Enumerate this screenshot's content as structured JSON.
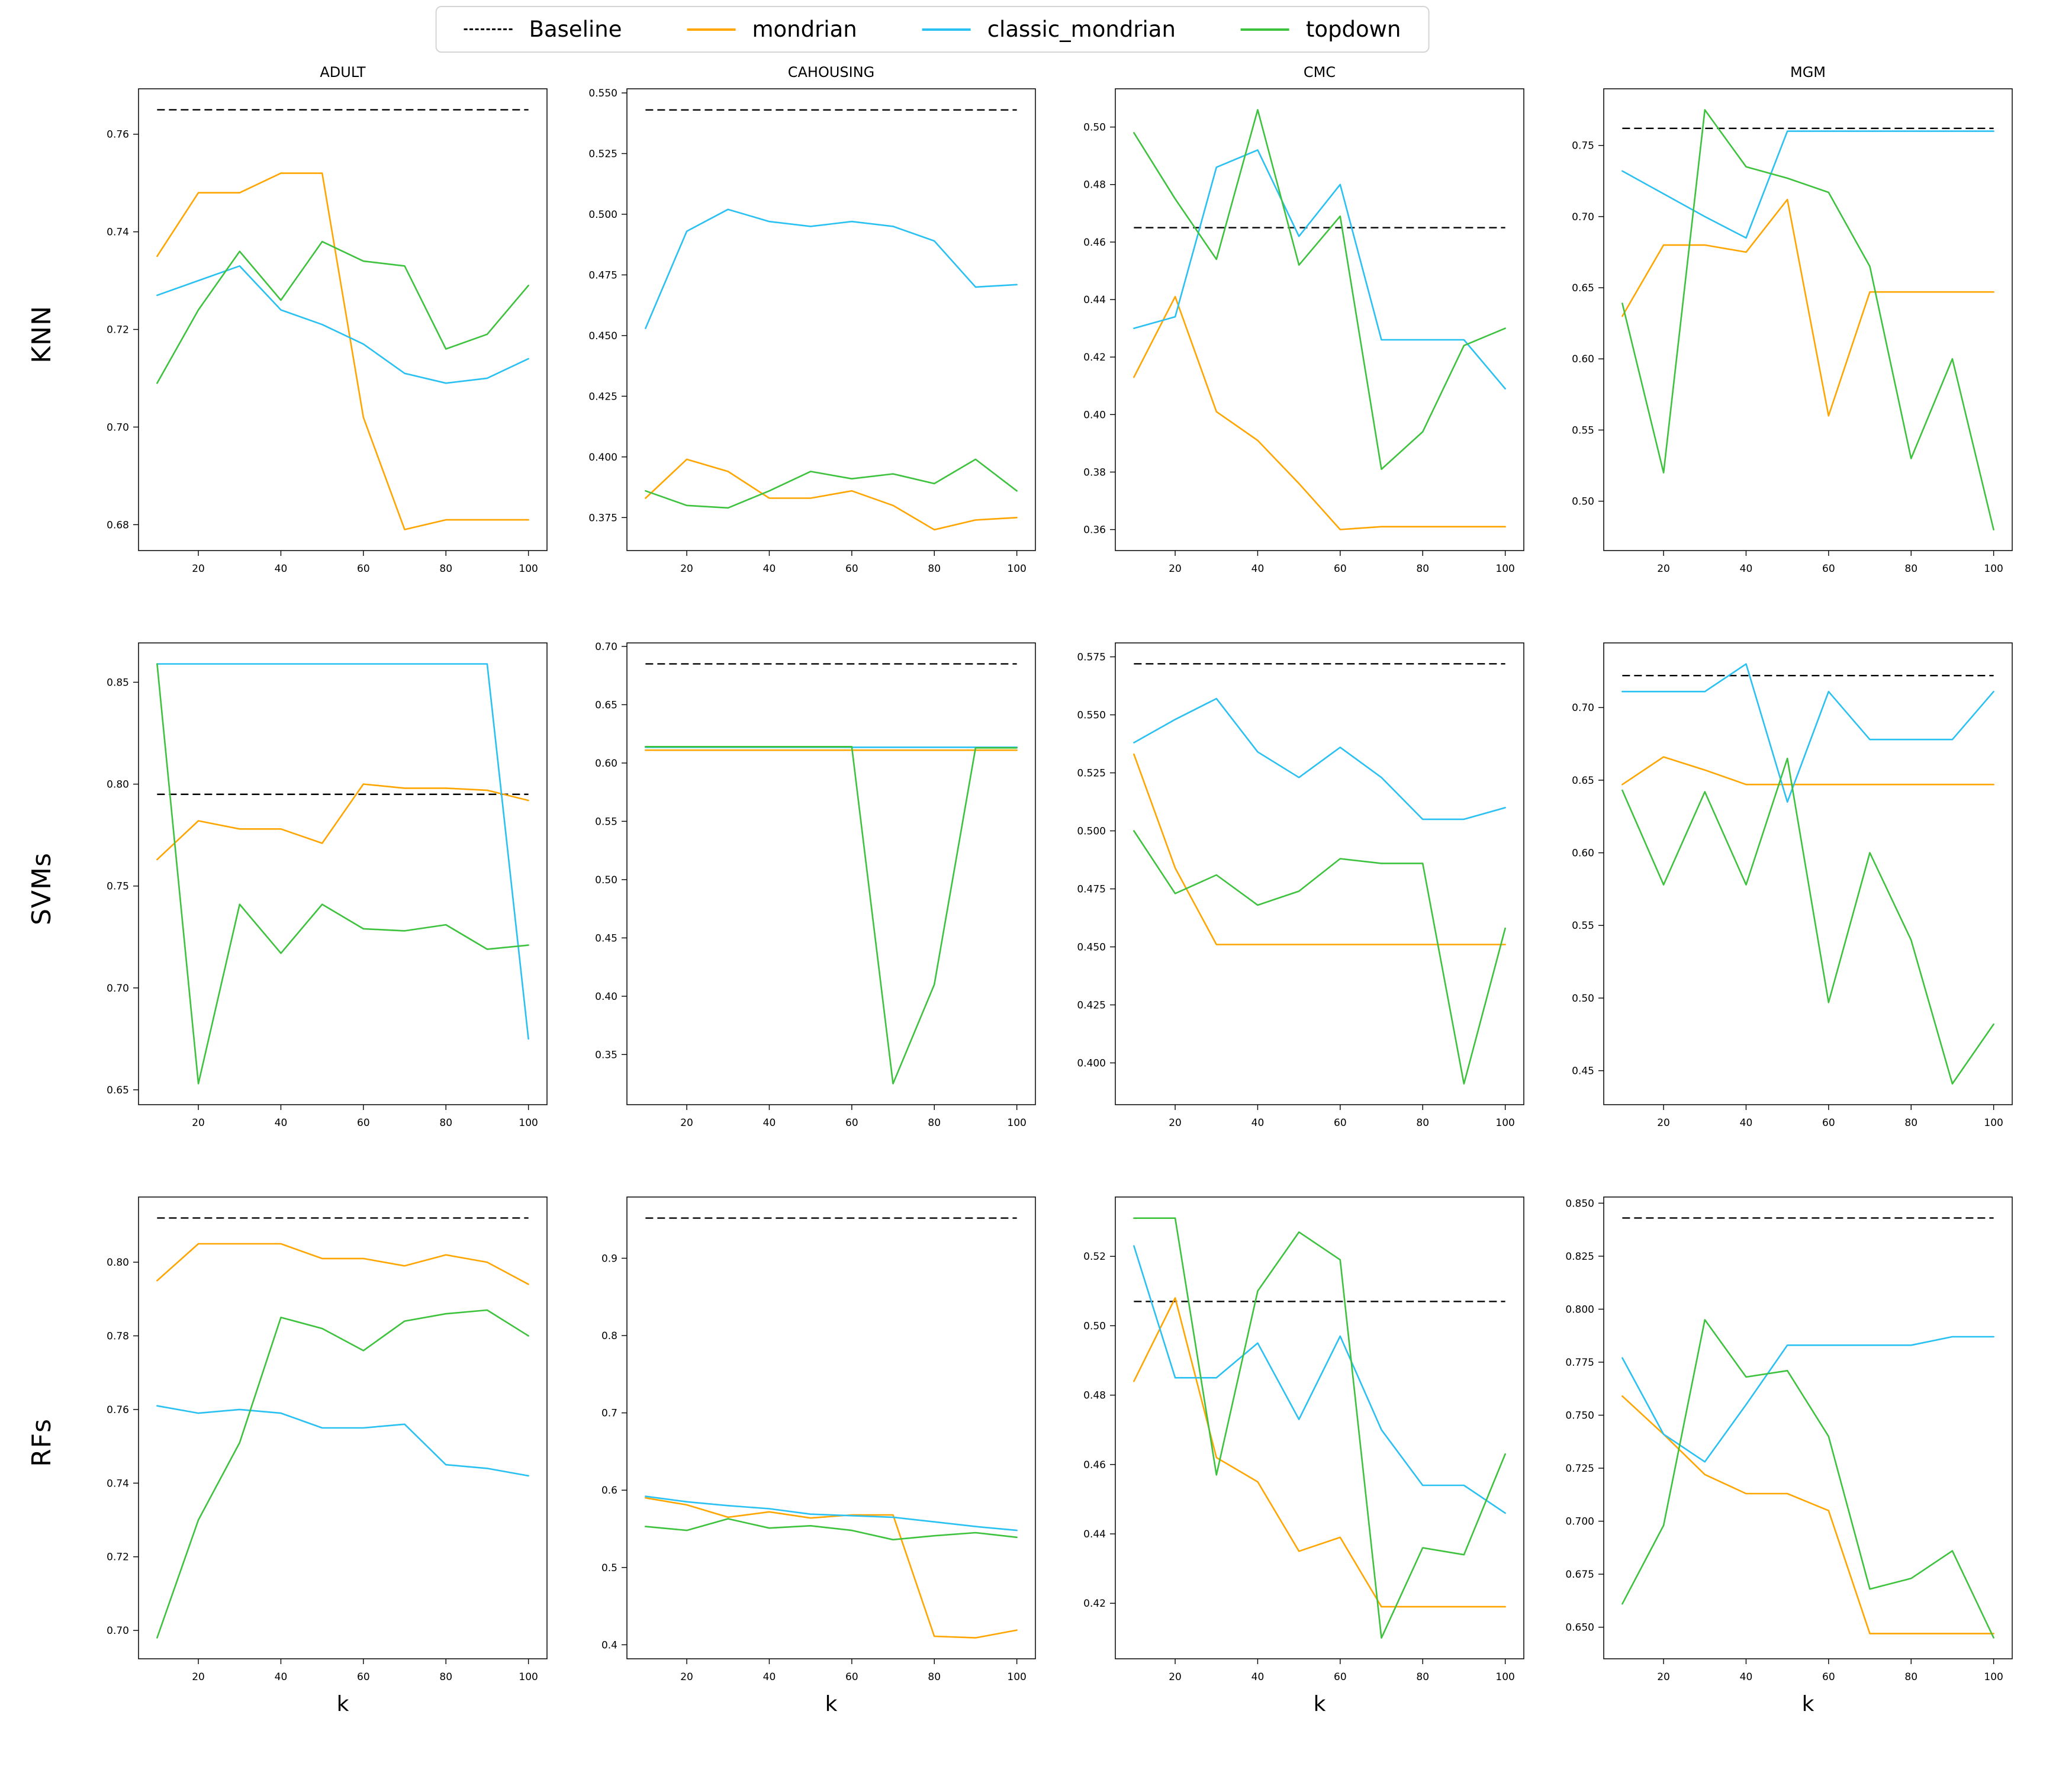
{
  "legend": {
    "items": [
      {
        "label": "Baseline",
        "color": "#000000",
        "style": "dashed"
      },
      {
        "label": "mondrian",
        "color": "#FFA500",
        "style": "solid"
      },
      {
        "label": "classic_mondrian",
        "color": "#29C0F2",
        "style": "solid"
      },
      {
        "label": "topdown",
        "color": "#3DC23D",
        "style": "solid"
      }
    ]
  },
  "rows": [
    {
      "label": "KNN"
    },
    {
      "label": "SVMs"
    },
    {
      "label": "RFs"
    }
  ],
  "colors": {
    "baseline": "#000000",
    "mondrian": "#FFA500",
    "classic_mondrian": "#29C0F2",
    "topdown": "#3DC23D"
  },
  "xlabel": "k",
  "chart_data": [
    {
      "type": "line",
      "row": "KNN",
      "dataset": "ADULT",
      "title": "ADULT",
      "xlabel": "",
      "x": [
        10,
        20,
        30,
        40,
        50,
        60,
        70,
        80,
        90,
        100
      ],
      "xticks": [
        20,
        40,
        60,
        80,
        100
      ],
      "xlim": [
        5.5,
        104.5
      ],
      "ylim": [
        0.6747,
        0.7693
      ],
      "ytick_values": [
        0.68,
        0.7,
        0.72,
        0.74,
        0.76
      ],
      "ytick_labels": [
        "0.68",
        "0.70",
        "0.72",
        "0.74",
        "0.76"
      ],
      "baseline": 0.765,
      "series": [
        {
          "name": "mondrian",
          "values": [
            0.735,
            0.748,
            0.748,
            0.752,
            0.752,
            0.702,
            0.679,
            0.681,
            0.681,
            0.681
          ]
        },
        {
          "name": "classic_mondrian",
          "values": [
            0.727,
            0.73,
            0.733,
            0.724,
            0.721,
            0.717,
            0.711,
            0.709,
            0.71,
            0.714
          ]
        },
        {
          "name": "topdown",
          "values": [
            0.709,
            0.724,
            0.736,
            0.726,
            0.738,
            0.734,
            0.733,
            0.716,
            0.719,
            0.729
          ]
        }
      ]
    },
    {
      "type": "line",
      "row": "KNN",
      "dataset": "CAHOUSING",
      "title": "CAHOUSING",
      "xlabel": "",
      "x": [
        10,
        20,
        30,
        40,
        50,
        60,
        70,
        80,
        90,
        100
      ],
      "xticks": [
        20,
        40,
        60,
        80,
        100
      ],
      "xlim": [
        5.5,
        104.5
      ],
      "ylim": [
        0.3614,
        0.5517
      ],
      "ytick_values": [
        0.375,
        0.4,
        0.425,
        0.45,
        0.475,
        0.5,
        0.525,
        0.55
      ],
      "ytick_labels": [
        "0.375",
        "0.400",
        "0.425",
        "0.450",
        "0.475",
        "0.500",
        "0.525",
        "0.550"
      ],
      "baseline": 0.543,
      "series": [
        {
          "name": "mondrian",
          "values": [
            0.383,
            0.399,
            0.394,
            0.383,
            0.383,
            0.386,
            0.38,
            0.37,
            0.374,
            0.375
          ]
        },
        {
          "name": "classic_mondrian",
          "values": [
            0.453,
            0.493,
            0.502,
            0.497,
            0.495,
            0.497,
            0.495,
            0.489,
            0.47,
            0.471
          ]
        },
        {
          "name": "topdown",
          "values": [
            0.386,
            0.38,
            0.379,
            0.386,
            0.394,
            0.391,
            0.393,
            0.389,
            0.399,
            0.386
          ]
        }
      ]
    },
    {
      "type": "line",
      "row": "KNN",
      "dataset": "CMC",
      "title": "CMC",
      "xlabel": "",
      "x": [
        10,
        20,
        30,
        40,
        50,
        60,
        70,
        80,
        90,
        100
      ],
      "xticks": [
        20,
        40,
        60,
        80,
        100
      ],
      "xlim": [
        5.5,
        104.5
      ],
      "ylim": [
        0.3527,
        0.5133
      ],
      "ytick_values": [
        0.36,
        0.38,
        0.4,
        0.42,
        0.44,
        0.46,
        0.48,
        0.5
      ],
      "ytick_labels": [
        "0.36",
        "0.38",
        "0.40",
        "0.42",
        "0.44",
        "0.46",
        "0.48",
        "0.50"
      ],
      "baseline": 0.465,
      "series": [
        {
          "name": "mondrian",
          "values": [
            0.413,
            0.441,
            0.401,
            0.391,
            0.376,
            0.36,
            0.361,
            0.361,
            0.361,
            0.361
          ]
        },
        {
          "name": "classic_mondrian",
          "values": [
            0.43,
            0.434,
            0.486,
            0.492,
            0.462,
            0.48,
            0.426,
            0.426,
            0.426,
            0.409
          ]
        },
        {
          "name": "topdown",
          "values": [
            0.498,
            0.475,
            0.454,
            0.506,
            0.452,
            0.469,
            0.381,
            0.394,
            0.424,
            0.43
          ]
        }
      ]
    },
    {
      "type": "line",
      "row": "KNN",
      "dataset": "MGM",
      "title": "MGM",
      "xlabel": "",
      "x": [
        10,
        20,
        30,
        40,
        50,
        60,
        70,
        80,
        90,
        100
      ],
      "xticks": [
        20,
        40,
        60,
        80,
        100
      ],
      "xlim": [
        5.5,
        104.5
      ],
      "ylim": [
        0.4653,
        0.7898
      ],
      "ytick_values": [
        0.5,
        0.55,
        0.6,
        0.65,
        0.7,
        0.75
      ],
      "ytick_labels": [
        "0.50",
        "0.55",
        "0.60",
        "0.65",
        "0.70",
        "0.75"
      ],
      "baseline": 0.762,
      "series": [
        {
          "name": "mondrian",
          "values": [
            0.63,
            0.68,
            0.68,
            0.675,
            0.712,
            0.56,
            0.647,
            0.647,
            0.647,
            0.647
          ]
        },
        {
          "name": "classic_mondrian",
          "values": [
            0.732,
            0.716,
            0.7,
            0.685,
            0.76,
            0.76,
            0.76,
            0.76,
            0.76,
            0.76
          ]
        },
        {
          "name": "topdown",
          "values": [
            0.639,
            0.52,
            0.775,
            0.735,
            0.727,
            0.717,
            0.665,
            0.53,
            0.6,
            0.48
          ]
        }
      ]
    },
    {
      "type": "line",
      "row": "SVMs",
      "dataset": "ADULT",
      "title": "",
      "xlabel": "",
      "x": [
        10,
        20,
        30,
        40,
        50,
        60,
        70,
        80,
        90,
        100
      ],
      "xticks": [
        20,
        40,
        60,
        80,
        100
      ],
      "xlim": [
        5.5,
        104.5
      ],
      "ylim": [
        0.6427,
        0.8693
      ],
      "ytick_values": [
        0.65,
        0.7,
        0.75,
        0.8,
        0.85
      ],
      "ytick_labels": [
        "0.65",
        "0.70",
        "0.75",
        "0.80",
        "0.85"
      ],
      "baseline": 0.795,
      "series": [
        {
          "name": "mondrian",
          "values": [
            0.763,
            0.782,
            0.778,
            0.778,
            0.771,
            0.8,
            0.798,
            0.798,
            0.797,
            0.792
          ]
        },
        {
          "name": "classic_mondrian",
          "values": [
            0.859,
            0.859,
            0.859,
            0.859,
            0.859,
            0.859,
            0.859,
            0.859,
            0.859,
            0.675
          ]
        },
        {
          "name": "topdown",
          "values": [
            0.859,
            0.653,
            0.741,
            0.717,
            0.741,
            0.729,
            0.728,
            0.731,
            0.719,
            0.721
          ]
        }
      ]
    },
    {
      "type": "line",
      "row": "SVMs",
      "dataset": "CAHOUSING",
      "title": "",
      "xlabel": "",
      "x": [
        10,
        20,
        30,
        40,
        50,
        60,
        70,
        80,
        90,
        100
      ],
      "xticks": [
        20,
        40,
        60,
        80,
        100
      ],
      "xlim": [
        5.5,
        104.5
      ],
      "ylim": [
        0.307,
        0.703
      ],
      "ytick_values": [
        0.35,
        0.4,
        0.45,
        0.5,
        0.55,
        0.6,
        0.65,
        0.7
      ],
      "ytick_labels": [
        "0.35",
        "0.40",
        "0.45",
        "0.50",
        "0.55",
        "0.60",
        "0.65",
        "0.70"
      ],
      "baseline": 0.685,
      "series": [
        {
          "name": "mondrian",
          "values": [
            0.611,
            0.611,
            0.611,
            0.611,
            0.611,
            0.611,
            0.611,
            0.611,
            0.611,
            0.611
          ]
        },
        {
          "name": "classic_mondrian",
          "values": [
            0.6135,
            0.6135,
            0.6135,
            0.6135,
            0.6135,
            0.6135,
            0.6135,
            0.6135,
            0.6135,
            0.6135
          ]
        },
        {
          "name": "topdown",
          "values": [
            0.614,
            0.614,
            0.614,
            0.614,
            0.614,
            0.614,
            0.325,
            0.41,
            0.613,
            0.613
          ]
        }
      ]
    },
    {
      "type": "line",
      "row": "SVMs",
      "dataset": "CMC",
      "title": "",
      "xlabel": "",
      "x": [
        10,
        20,
        30,
        40,
        50,
        60,
        70,
        80,
        90,
        100
      ],
      "xticks": [
        20,
        40,
        60,
        80,
        100
      ],
      "xlim": [
        5.5,
        104.5
      ],
      "ylim": [
        0.382,
        0.581
      ],
      "ytick_values": [
        0.4,
        0.425,
        0.45,
        0.475,
        0.5,
        0.525,
        0.55,
        0.575
      ],
      "ytick_labels": [
        "0.400",
        "0.425",
        "0.450",
        "0.475",
        "0.500",
        "0.525",
        "0.550",
        "0.575"
      ],
      "baseline": 0.572,
      "series": [
        {
          "name": "mondrian",
          "values": [
            0.533,
            0.484,
            0.451,
            0.451,
            0.451,
            0.451,
            0.451,
            0.451,
            0.451,
            0.451
          ]
        },
        {
          "name": "classic_mondrian",
          "values": [
            0.538,
            0.548,
            0.557,
            0.534,
            0.523,
            0.536,
            0.523,
            0.505,
            0.505,
            0.51
          ]
        },
        {
          "name": "topdown",
          "values": [
            0.5,
            0.473,
            0.481,
            0.468,
            0.474,
            0.488,
            0.486,
            0.486,
            0.391,
            0.458
          ]
        }
      ]
    },
    {
      "type": "line",
      "row": "SVMs",
      "dataset": "MGM",
      "title": "",
      "xlabel": "",
      "x": [
        10,
        20,
        30,
        40,
        50,
        60,
        70,
        80,
        90,
        100
      ],
      "xticks": [
        20,
        40,
        60,
        80,
        100
      ],
      "xlim": [
        5.5,
        104.5
      ],
      "ylim": [
        0.4266,
        0.7445
      ],
      "ytick_values": [
        0.45,
        0.5,
        0.55,
        0.6,
        0.65,
        0.7
      ],
      "ytick_labels": [
        "0.45",
        "0.50",
        "0.55",
        "0.60",
        "0.65",
        "0.70"
      ],
      "baseline": 0.722,
      "series": [
        {
          "name": "mondrian",
          "values": [
            0.647,
            0.666,
            0.657,
            0.647,
            0.647,
            0.647,
            0.647,
            0.647,
            0.647,
            0.647
          ]
        },
        {
          "name": "classic_mondrian",
          "values": [
            0.711,
            0.711,
            0.711,
            0.73,
            0.635,
            0.711,
            0.678,
            0.678,
            0.678,
            0.711
          ]
        },
        {
          "name": "topdown",
          "values": [
            0.643,
            0.578,
            0.642,
            0.578,
            0.665,
            0.497,
            0.6,
            0.54,
            0.441,
            0.482
          ]
        }
      ]
    },
    {
      "type": "line",
      "row": "RFs",
      "dataset": "ADULT",
      "title": "",
      "xlabel": "k",
      "x": [
        10,
        20,
        30,
        40,
        50,
        60,
        70,
        80,
        90,
        100
      ],
      "xticks": [
        20,
        40,
        60,
        80,
        100
      ],
      "xlim": [
        5.5,
        104.5
      ],
      "ylim": [
        0.6923,
        0.8177
      ],
      "ytick_values": [
        0.7,
        0.72,
        0.74,
        0.76,
        0.78,
        0.8
      ],
      "ytick_labels": [
        "0.70",
        "0.72",
        "0.74",
        "0.76",
        "0.78",
        "0.80"
      ],
      "baseline": 0.812,
      "series": [
        {
          "name": "mondrian",
          "values": [
            0.795,
            0.805,
            0.805,
            0.805,
            0.801,
            0.801,
            0.799,
            0.802,
            0.8,
            0.794
          ]
        },
        {
          "name": "classic_mondrian",
          "values": [
            0.761,
            0.759,
            0.76,
            0.759,
            0.755,
            0.755,
            0.756,
            0.745,
            0.744,
            0.742
          ]
        },
        {
          "name": "topdown",
          "values": [
            0.698,
            0.73,
            0.751,
            0.785,
            0.782,
            0.776,
            0.784,
            0.786,
            0.787,
            0.78
          ]
        }
      ]
    },
    {
      "type": "line",
      "row": "RFs",
      "dataset": "CAHOUSING",
      "title": "",
      "xlabel": "k",
      "x": [
        10,
        20,
        30,
        40,
        50,
        60,
        70,
        80,
        90,
        100
      ],
      "xticks": [
        20,
        40,
        60,
        80,
        100
      ],
      "xlim": [
        5.5,
        104.5
      ],
      "ylim": [
        0.3819,
        0.9792
      ],
      "ytick_values": [
        0.4,
        0.5,
        0.6,
        0.7,
        0.8,
        0.9
      ],
      "ytick_labels": [
        "0.4",
        "0.5",
        "0.6",
        "0.7",
        "0.8",
        "0.9"
      ],
      "baseline": 0.952,
      "series": [
        {
          "name": "mondrian",
          "values": [
            0.59,
            0.581,
            0.565,
            0.572,
            0.564,
            0.568,
            0.568,
            0.411,
            0.409,
            0.419
          ]
        },
        {
          "name": "classic_mondrian",
          "values": [
            0.592,
            0.585,
            0.58,
            0.576,
            0.569,
            0.567,
            0.565,
            0.559,
            0.553,
            0.548
          ]
        },
        {
          "name": "topdown",
          "values": [
            0.553,
            0.548,
            0.563,
            0.551,
            0.554,
            0.548,
            0.536,
            0.541,
            0.545,
            0.539
          ]
        }
      ]
    },
    {
      "type": "line",
      "row": "RFs",
      "dataset": "CMC",
      "title": "",
      "xlabel": "k",
      "x": [
        10,
        20,
        30,
        40,
        50,
        60,
        70,
        80,
        90,
        100
      ],
      "xticks": [
        20,
        40,
        60,
        80,
        100
      ],
      "xlim": [
        5.5,
        104.5
      ],
      "ylim": [
        0.404,
        0.5371
      ],
      "ytick_values": [
        0.42,
        0.44,
        0.46,
        0.48,
        0.5,
        0.52
      ],
      "ytick_labels": [
        "0.42",
        "0.44",
        "0.46",
        "0.48",
        "0.50",
        "0.52"
      ],
      "baseline": 0.507,
      "series": [
        {
          "name": "mondrian",
          "values": [
            0.484,
            0.508,
            0.462,
            0.455,
            0.435,
            0.439,
            0.419,
            0.419,
            0.419,
            0.419
          ]
        },
        {
          "name": "classic_mondrian",
          "values": [
            0.523,
            0.485,
            0.485,
            0.495,
            0.473,
            0.497,
            0.47,
            0.454,
            0.454,
            0.446
          ]
        },
        {
          "name": "topdown",
          "values": [
            0.531,
            0.531,
            0.457,
            0.51,
            0.527,
            0.519,
            0.41,
            0.436,
            0.434,
            0.463
          ]
        }
      ]
    },
    {
      "type": "line",
      "row": "RFs",
      "dataset": "MGM",
      "title": "",
      "xlabel": "k",
      "x": [
        10,
        20,
        30,
        40,
        50,
        60,
        70,
        80,
        90,
        100
      ],
      "xticks": [
        20,
        40,
        60,
        80,
        100
      ],
      "xlim": [
        5.5,
        104.5
      ],
      "ylim": [
        0.6351,
        0.8529
      ],
      "ytick_values": [
        0.65,
        0.675,
        0.7,
        0.725,
        0.75,
        0.775,
        0.8,
        0.825,
        0.85
      ],
      "ytick_labels": [
        "0.650",
        "0.675",
        "0.700",
        "0.725",
        "0.750",
        "0.775",
        "0.800",
        "0.825",
        "0.850"
      ],
      "baseline": 0.843,
      "series": [
        {
          "name": "mondrian",
          "values": [
            0.759,
            0.741,
            0.722,
            0.713,
            0.713,
            0.705,
            0.647,
            0.647,
            0.647,
            0.647
          ]
        },
        {
          "name": "classic_mondrian",
          "values": [
            0.777,
            0.741,
            0.728,
            0.755,
            0.783,
            0.783,
            0.783,
            0.783,
            0.787,
            0.787
          ]
        },
        {
          "name": "topdown",
          "values": [
            0.661,
            0.698,
            0.795,
            0.768,
            0.771,
            0.74,
            0.668,
            0.673,
            0.686,
            0.645
          ]
        }
      ]
    }
  ]
}
